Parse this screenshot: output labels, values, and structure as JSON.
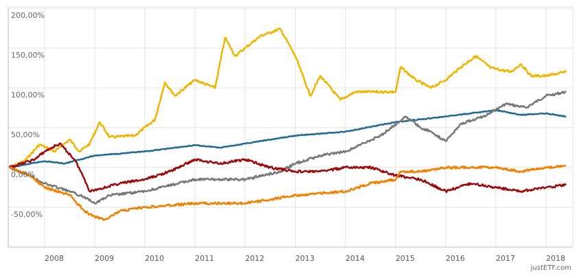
{
  "chart_data": {
    "type": "line",
    "title": "",
    "xlabel": "",
    "ylabel": "",
    "xlim": [
      2007.2,
      2018.45
    ],
    "ylim": [
      -100,
      200
    ],
    "grid": true,
    "x_ticks": [
      2008,
      2009,
      2010,
      2011,
      2012,
      2013,
      2014,
      2015,
      2016,
      2017,
      2018
    ],
    "x_tick_labels": [
      "2008",
      "2009",
      "2010",
      "2011",
      "2012",
      "2013",
      "2014",
      "2015",
      "2016",
      "2017",
      "2018"
    ],
    "y_ticks": [
      200,
      150,
      100,
      50,
      0,
      -50
    ],
    "y_tick_labels": [
      "200,00%",
      "150,00%",
      "100,00%",
      "50,00%",
      "0,00%",
      "-50,00%"
    ],
    "watermark": "justETF.com",
    "series": [
      {
        "name": "gold",
        "color": "#f0b400",
        "x": [
          2007.3,
          2007.6,
          2007.9,
          2008.2,
          2008.5,
          2008.7,
          2008.9,
          2009.1,
          2009.3,
          2009.8,
          2010.2,
          2010.4,
          2010.6,
          2011.0,
          2011.4,
          2011.6,
          2011.8,
          2012.0,
          2012.3,
          2012.7,
          2013.0,
          2013.3,
          2013.5,
          2013.9,
          2014.2,
          2014.7,
          2015.0,
          2015.1,
          2015.4,
          2015.7,
          2016.0,
          2016.3,
          2016.6,
          2016.9,
          2017.3,
          2017.5,
          2017.7,
          2018.0,
          2018.4
        ],
        "y": [
          0,
          8,
          29,
          20,
          35,
          20,
          30,
          57,
          38,
          40,
          60,
          107,
          90,
          110,
          100,
          163,
          140,
          150,
          165,
          174,
          140,
          90,
          115,
          85,
          95,
          95,
          95,
          126,
          110,
          100,
          110,
          126,
          140,
          125,
          120,
          130,
          115,
          115,
          120
        ]
      },
      {
        "name": "blue",
        "color": "#1f6a96",
        "x": [
          2007.3,
          2008.0,
          2008.4,
          2009.0,
          2010.0,
          2011.0,
          2011.5,
          2012.0,
          2013.0,
          2014.0,
          2015.0,
          2016.0,
          2017.0,
          2017.5,
          2018.0,
          2018.4
        ],
        "y": [
          0,
          8,
          5,
          15,
          20,
          28,
          25,
          30,
          40,
          45,
          57,
          64,
          72,
          66,
          68,
          64
        ]
      },
      {
        "name": "gray",
        "color": "#777777",
        "x": [
          2007.3,
          2007.7,
          2008.0,
          2008.5,
          2008.9,
          2009.0,
          2009.3,
          2010.0,
          2011.0,
          2012.0,
          2012.7,
          2013.0,
          2013.5,
          2014.0,
          2014.7,
          2015.2,
          2015.5,
          2015.7,
          2016.0,
          2016.3,
          2016.8,
          2017.2,
          2017.6,
          2018.0,
          2018.4
        ],
        "y": [
          0,
          -10,
          -20,
          -30,
          -40,
          -45,
          -35,
          -30,
          -15,
          -15,
          -5,
          5,
          15,
          20,
          40,
          64,
          50,
          45,
          33,
          55,
          65,
          80,
          75,
          90,
          95
        ]
      },
      {
        "name": "red",
        "color": "#9a0a0a",
        "x": [
          2007.3,
          2007.8,
          2008.0,
          2008.3,
          2008.6,
          2008.8,
          2008.9,
          2009.5,
          2010.0,
          2010.5,
          2011.0,
          2011.5,
          2012.0,
          2012.5,
          2013.0,
          2013.5,
          2014.0,
          2014.5,
          2015.0,
          2015.5,
          2016.0,
          2016.5,
          2017.0,
          2017.5,
          2018.0,
          2018.4
        ],
        "y": [
          0,
          10,
          20,
          30,
          10,
          -15,
          -30,
          -20,
          -15,
          -5,
          10,
          5,
          10,
          0,
          -5,
          -5,
          0,
          0,
          -10,
          -15,
          -30,
          -20,
          -25,
          -30,
          -25,
          -22
        ]
      },
      {
        "name": "orange",
        "color": "#f08000",
        "x": [
          2007.3,
          2007.7,
          2008.0,
          2008.5,
          2008.8,
          2009.0,
          2009.2,
          2009.5,
          2010.0,
          2011.0,
          2012.0,
          2012.5,
          2013.0,
          2014.0,
          2014.5,
          2015.0,
          2015.1,
          2015.5,
          2016.0,
          2016.5,
          2017.0,
          2017.5,
          2018.0,
          2018.4
        ],
        "y": [
          0,
          -10,
          -25,
          -35,
          -55,
          -62,
          -65,
          -55,
          -50,
          -45,
          -45,
          -40,
          -35,
          -30,
          -20,
          -15,
          -5,
          -5,
          0,
          0,
          0,
          -5,
          0,
          2
        ]
      }
    ]
  }
}
